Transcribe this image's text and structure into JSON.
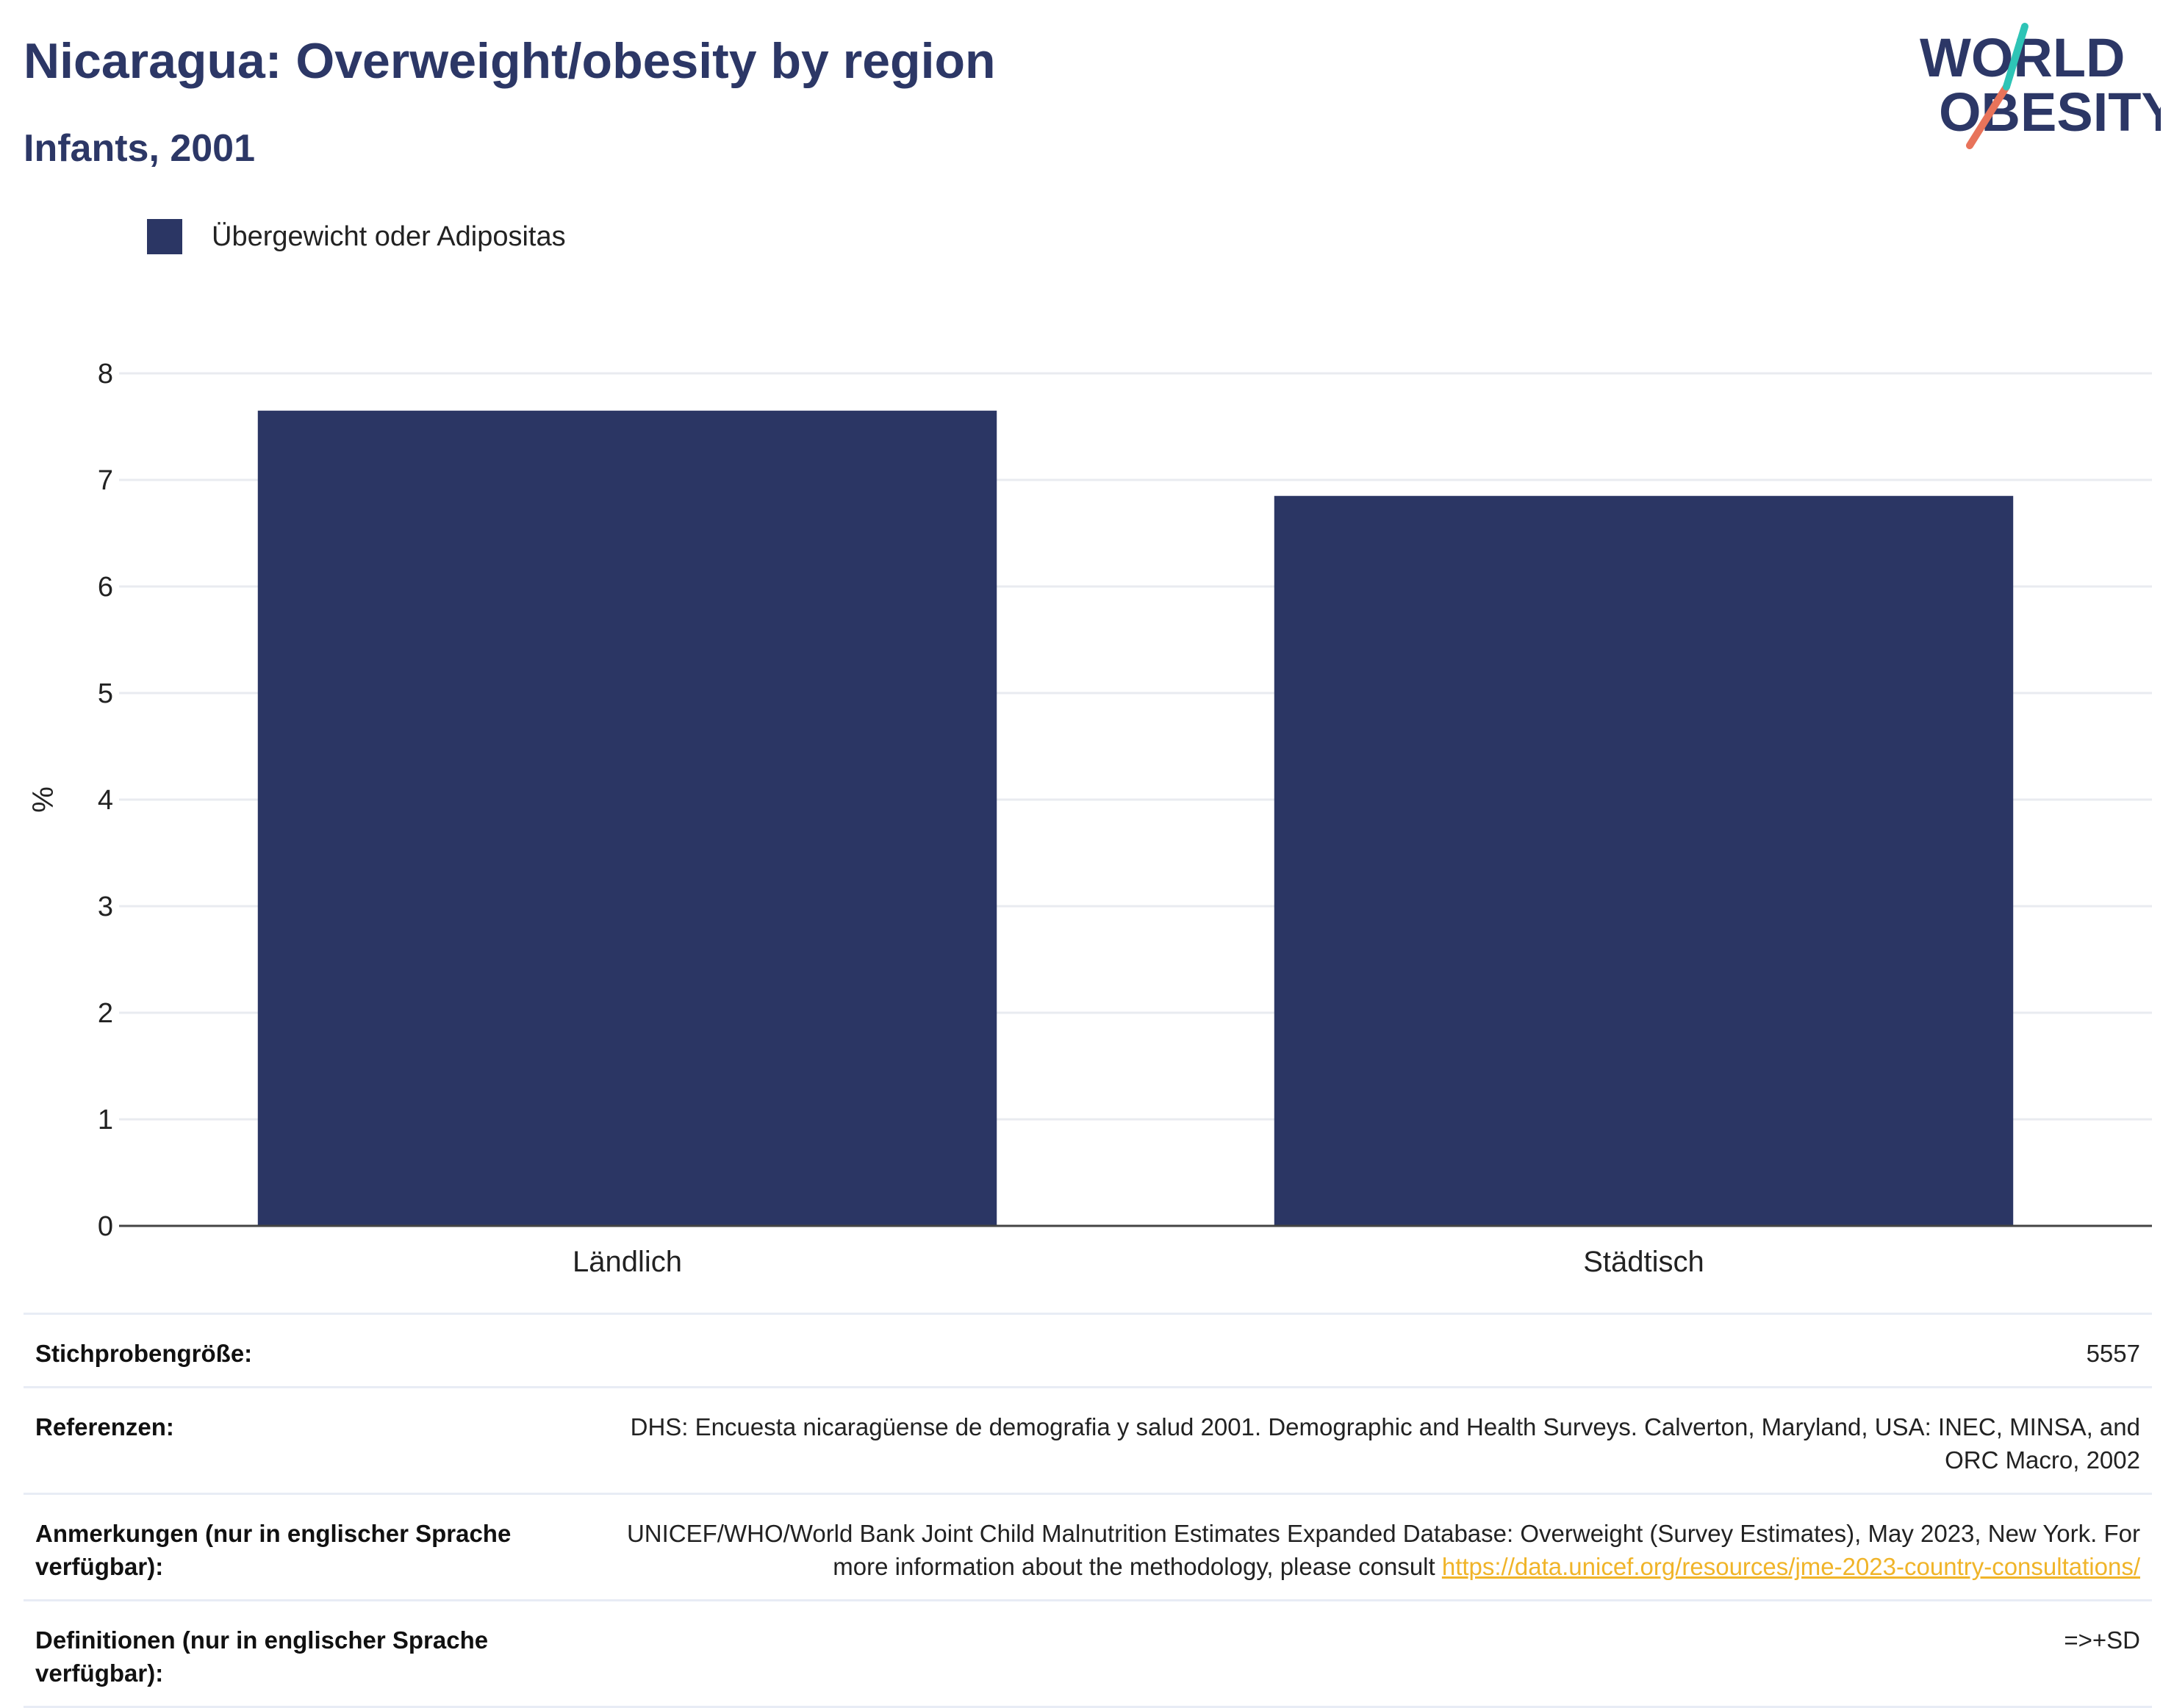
{
  "header": {
    "title": "Nicaragua: Overweight/obesity by region",
    "subtitle": "Infants, 2001"
  },
  "logo": {
    "line1": "WORLD",
    "line2": "OBESITY",
    "accent_teal": "#2ec4b6",
    "accent_coral": "#e8735a",
    "text_color": "#2c3766"
  },
  "legend": {
    "label": "Übergewicht oder Adipositas",
    "color": "#2b3664"
  },
  "chart_data": {
    "type": "bar",
    "categories": [
      "Ländlich",
      "Städtisch"
    ],
    "series": [
      {
        "name": "Übergewicht oder Adipositas",
        "values": [
          7.65,
          6.85
        ],
        "color": "#2b3664"
      }
    ],
    "ylabel": "%",
    "xlabel": "",
    "ylim": [
      0,
      8
    ],
    "yticks": [
      0,
      1,
      2,
      3,
      4,
      5,
      6,
      7,
      8
    ],
    "grid": true,
    "legend_position": "top-left"
  },
  "info_table": [
    {
      "key": "Stichprobengröße:",
      "value": "5557"
    },
    {
      "key": "Referenzen:",
      "value": "DHS: Encuesta nicaragüense de demografia y salud 2001. Demographic and Health Surveys. Calverton, Maryland, USA: INEC, MINSA, and ORC Macro, 2002"
    },
    {
      "key": "Anmerkungen (nur in englischer Sprache verfügbar):",
      "value": "UNICEF/WHO/World Bank Joint Child Malnutrition Estimates Expanded Database: Overweight (Survey Estimates), May 2023, New York. For more information about the methodology, please consult ",
      "link": "https://data.unicef.org/resources/jme-2023-country-consultations/"
    },
    {
      "key": "Definitionen (nur in englischer Sprache verfügbar):",
      "value": "=>+SD"
    }
  ]
}
